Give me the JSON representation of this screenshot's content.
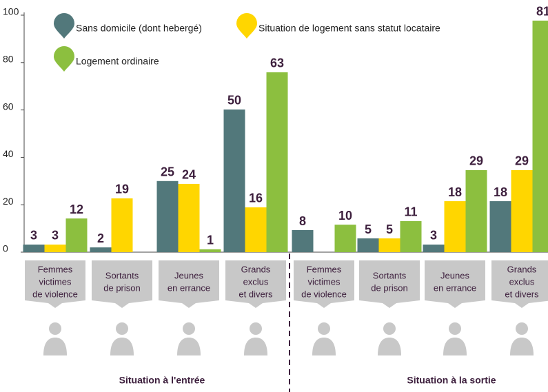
{
  "chart_data": {
    "type": "bar",
    "groups": [
      "Situation à l'entrée",
      "Situation à la sortie"
    ],
    "categories": [
      [
        "Femmes",
        "victimes",
        "de violence"
      ],
      [
        "Sortants",
        "de prison"
      ],
      [
        "Jeunes",
        "en errance"
      ],
      [
        "Grands",
        "exclus",
        "et divers"
      ],
      [
        "Femmes",
        "victimes",
        "de violence"
      ],
      [
        "Sortants",
        "de prison"
      ],
      [
        "Jeunes",
        "en errance"
      ],
      [
        "Grands",
        "exclus",
        "et divers"
      ]
    ],
    "series": [
      {
        "name": "Sans domicile (dont hebergé)",
        "color": "#52787b",
        "values": [
          3.2,
          2.0,
          30,
          60.2,
          9.3,
          5.8,
          3.2,
          21.5
        ],
        "counts": [
          3,
          2,
          25,
          50,
          8,
          5,
          3,
          18
        ]
      },
      {
        "name": "Situation de logement sans statut locataire",
        "color": "#ffd600",
        "values": [
          3.2,
          22.7,
          28.8,
          18.9,
          null,
          5.8,
          21.5,
          34.6
        ],
        "counts": [
          3,
          19,
          24,
          16,
          null,
          5,
          18,
          29
        ]
      },
      {
        "name": "Logement ordinaire",
        "color": "#8cbf3f",
        "values": [
          14.2,
          null,
          1.2,
          75.9,
          11.6,
          13.1,
          34.6,
          97.7
        ],
        "counts": [
          12,
          null,
          1,
          63,
          10,
          11,
          29,
          81
        ]
      }
    ],
    "ylim": [
      0,
      100
    ],
    "yticks": [
      0,
      20,
      40,
      60,
      80,
      100
    ],
    "grid": false
  }
}
